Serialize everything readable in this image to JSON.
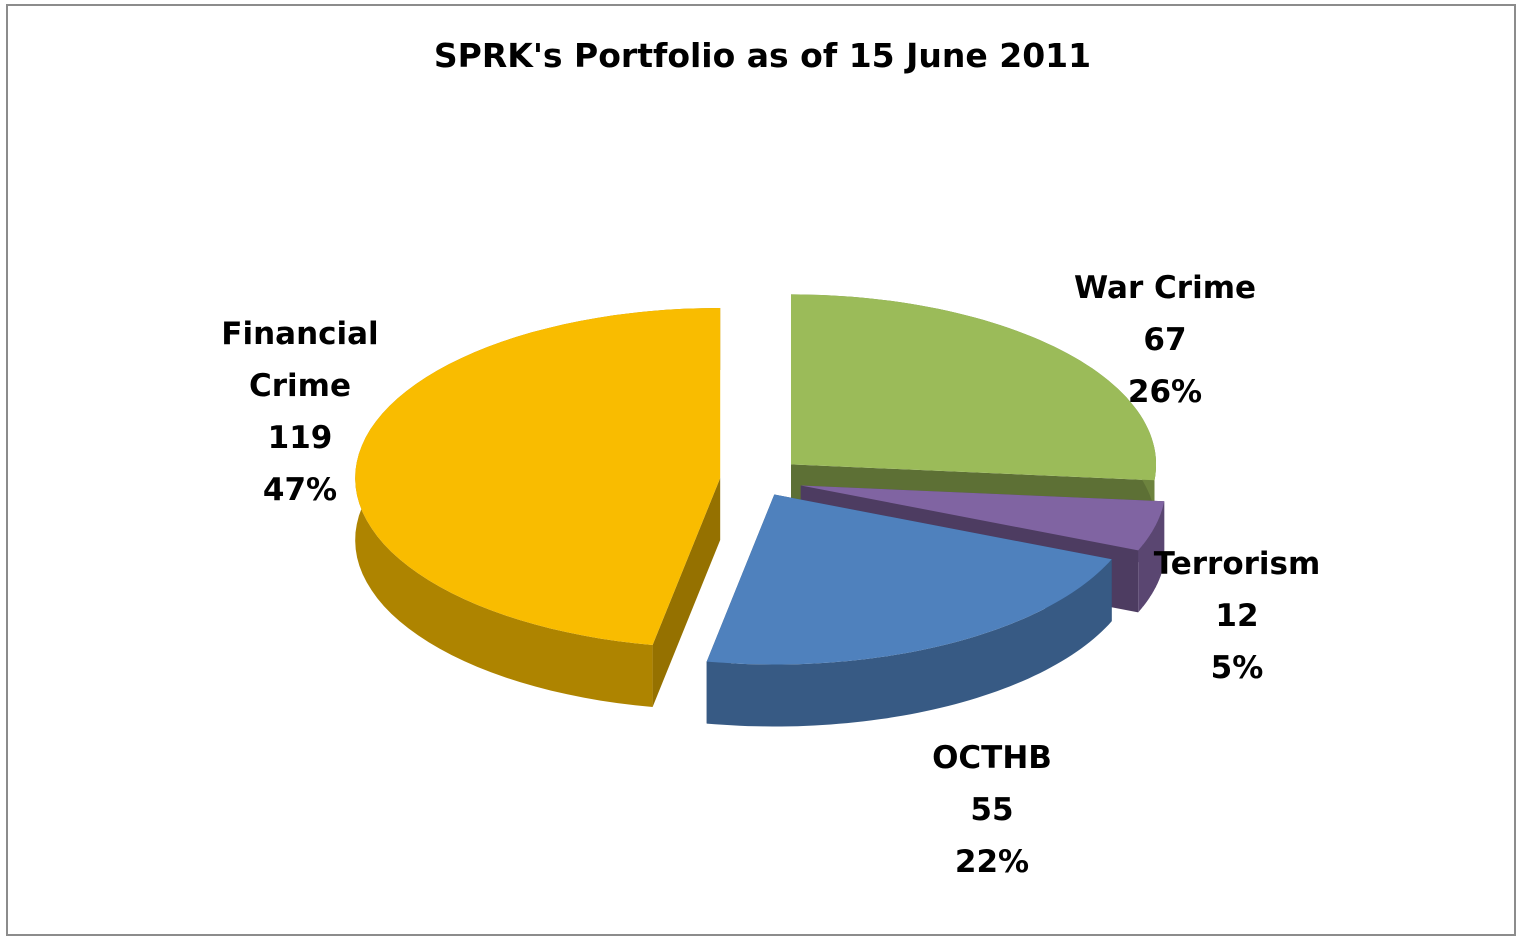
{
  "chart_data": {
    "type": "pie",
    "title": "SPRK's Portfolio as of 15 June 2011",
    "categories": [
      "War Crime",
      "Terrorism",
      "OCTHB",
      "Financial Crime"
    ],
    "values": [
      67,
      12,
      55,
      119
    ],
    "percent_labels": [
      "26%",
      "5%",
      "22%",
      "47%"
    ],
    "colors": [
      "#9bbb59",
      "#8064a2",
      "#4f81bd",
      "#f9bc00"
    ]
  }
}
